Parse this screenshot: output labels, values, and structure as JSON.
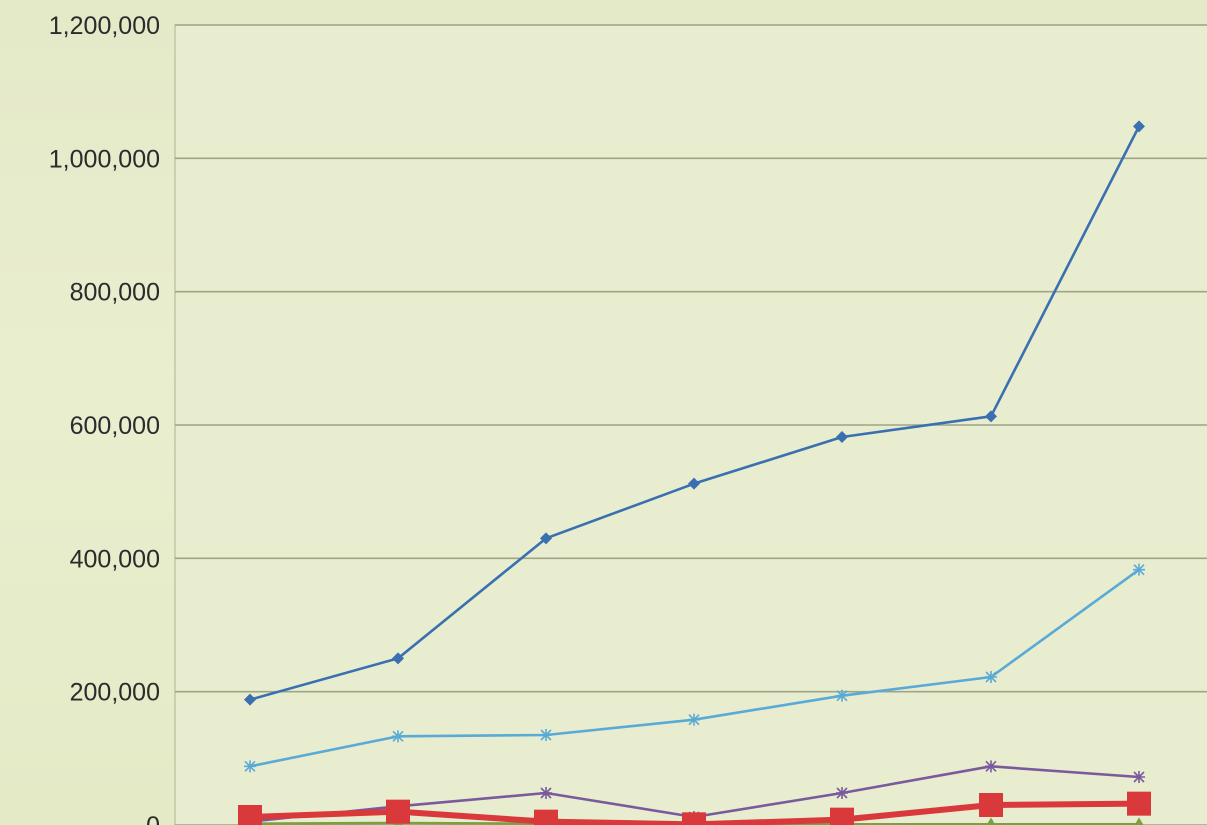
{
  "chart_data": {
    "type": "line",
    "title": "",
    "xlabel": "",
    "ylabel": "",
    "ylim": [
      0,
      1200000
    ],
    "yticks": [
      0,
      200000,
      400000,
      600000,
      800000,
      1000000,
      1200000
    ],
    "ytick_labels": [
      "0",
      "200,000",
      "400,000",
      "600,000",
      "800,000",
      "1,000,000",
      "1,200,000"
    ],
    "x": [
      1,
      2,
      3,
      4,
      5,
      6,
      7
    ],
    "grid": true,
    "legend": "none visible",
    "series": [
      {
        "values": [
          188000,
          250000,
          430000,
          512000,
          582000,
          613000,
          1048000
        ],
        "color": "#3a6fb0",
        "marker": "diamond",
        "line_width": "thin"
      },
      {
        "values": [
          88000,
          133000,
          135000,
          158000,
          194000,
          222000,
          383000
        ],
        "color": "#5aaad6",
        "marker": "star",
        "line_width": "thin"
      },
      {
        "values": [
          5000,
          28000,
          48000,
          12000,
          48000,
          88000,
          72000
        ],
        "color": "#7a5a9c",
        "marker": "star",
        "line_width": "thin"
      },
      {
        "values": [
          12000,
          20000,
          5000,
          1000,
          8000,
          30000,
          32000
        ],
        "color": "#d9393a",
        "marker": "square",
        "line_width": "thick"
      },
      {
        "values": [
          2000,
          3000,
          2000,
          1000,
          1000,
          1000,
          1000
        ],
        "color": "#7c9f3f",
        "marker": "triangle",
        "line_width": "thin"
      }
    ]
  }
}
